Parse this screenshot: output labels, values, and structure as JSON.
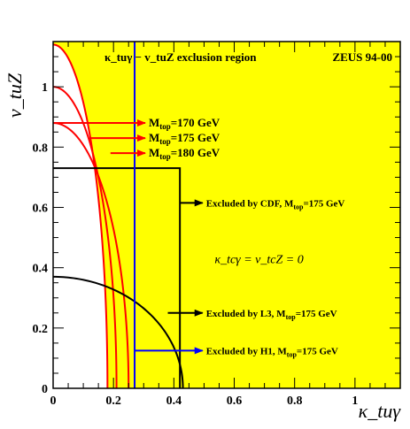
{
  "chart_data": {
    "type": "line",
    "title": "κ_tuγ − v_tuZ exclusion region",
    "experiment_label": "ZEUS 94-00",
    "xlabel": "κ_tuγ",
    "ylabel": "v_tuZ",
    "xlim": [
      0,
      1.15
    ],
    "ylim": [
      0,
      1.15
    ],
    "x_ticks": [
      "0",
      "0.2",
      "0.4",
      "0.6",
      "0.8",
      "1"
    ],
    "y_ticks": [
      "0",
      "0.2",
      "0.4",
      "0.6",
      "0.8",
      "1"
    ],
    "background_color": "#ffff00",
    "excluded_fill": "#ffff00",
    "allowed_fill": "#ffffff",
    "condition_text": "κ_tcγ = v_tcZ = 0",
    "series": [
      {
        "name": "M_top=170 GeV",
        "color": "#ff0000",
        "shape": "ellipse",
        "x_intercept": 0.18,
        "y_intercept": 1.14
      },
      {
        "name": "M_top=175 GeV",
        "color": "#ff0000",
        "shape": "ellipse",
        "x_intercept": 0.21,
        "y_intercept": 1.0
      },
      {
        "name": "M_top=180 GeV",
        "color": "#ff0000",
        "shape": "ellipse",
        "x_intercept": 0.25,
        "y_intercept": 0.88
      },
      {
        "name": "Excluded by CDF, M_top=175 GeV",
        "color": "#000000",
        "shape": "box",
        "x_edge": 0.42,
        "y_edge": 0.73
      },
      {
        "name": "Excluded by L3, M_top=175 GeV",
        "color": "#000000",
        "shape": "ellipse",
        "x_intercept": 0.43,
        "y_intercept": 0.37
      },
      {
        "name": "Excluded by H1, M_top=175 GeV",
        "color": "#0000ff",
        "shape": "vline",
        "x_value": 0.27
      }
    ],
    "labels": [
      {
        "prefix": "M",
        "sub": "top",
        "suffix": "=170 GeV",
        "y": 0.88,
        "arrow_from_x": 0.0,
        "color": "#ff0000"
      },
      {
        "prefix": "M",
        "sub": "top",
        "suffix": "=175 GeV",
        "y": 0.83,
        "arrow_from_x": 0.12,
        "color": "#ff0000"
      },
      {
        "prefix": "M",
        "sub": "top",
        "suffix": "=180 GeV",
        "y": 0.78,
        "arrow_from_x": 0.19,
        "color": "#ff0000"
      },
      {
        "prefix": "Excluded by CDF,  M",
        "sub": "top",
        "suffix": "=175 GeV",
        "y": 0.615,
        "arrow_from_x": 0.42,
        "color": "#000000"
      },
      {
        "prefix": "Excluded by L3,  M",
        "sub": "top",
        "suffix": "=175 GeV",
        "y": 0.25,
        "arrow_from_x": 0.38,
        "color": "#000000"
      },
      {
        "prefix": "Excluded by H1,  M",
        "sub": "top",
        "suffix": "=175 GeV",
        "y": 0.125,
        "arrow_from_x": 0.27,
        "color": "#0000ff"
      }
    ]
  }
}
